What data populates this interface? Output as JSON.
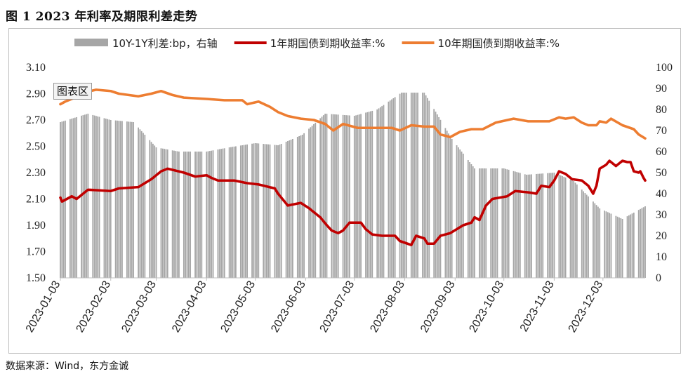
{
  "page": {
    "title": "图 1   2023 年利率及期限利差走势",
    "source": "数据来源：Wind，东方金诚",
    "chart_area_tag": "图表区"
  },
  "chart_data": {
    "type": "line",
    "title": "图 1   2023 年利率及期限利差走势",
    "left_axis": {
      "ylim": [
        1.5,
        3.1
      ],
      "ticks": [
        "1.50",
        "1.70",
        "1.90",
        "2.10",
        "2.30",
        "2.50",
        "2.70",
        "2.90",
        "3.10"
      ]
    },
    "right_axis": {
      "ylim": [
        0,
        100
      ],
      "ticks": [
        "0",
        "10",
        "20",
        "30",
        "40",
        "50",
        "60",
        "70",
        "80",
        "90",
        "100"
      ]
    },
    "x_ticks": [
      "2023-01-03",
      "2023-02-03",
      "2023-03-03",
      "2023-04-03",
      "2023-05-03",
      "2023-06-03",
      "2023-07-03",
      "2023-08-03",
      "2023-09-03",
      "2023-10-03",
      "2023-11-03",
      "2023-12-03"
    ],
    "x_range": [
      "2023-01-03",
      "2023-12-29"
    ],
    "legend_position": "top",
    "grid": false,
    "series": [
      {
        "name": "10Y-1Y利差:bp，右轴",
        "type": "bar",
        "axis": "right",
        "color": "#a6a6a6",
        "points": [
          [
            "2023-01-03",
            74
          ],
          [
            "2023-01-20",
            78
          ],
          [
            "2023-02-03",
            75
          ],
          [
            "2023-02-17",
            74
          ],
          [
            "2023-03-03",
            62
          ],
          [
            "2023-03-17",
            60
          ],
          [
            "2023-04-03",
            60
          ],
          [
            "2023-04-17",
            62
          ],
          [
            "2023-05-03",
            64
          ],
          [
            "2023-05-17",
            63
          ],
          [
            "2023-06-01",
            68
          ],
          [
            "2023-06-15",
            78
          ],
          [
            "2023-07-03",
            77
          ],
          [
            "2023-07-17",
            80
          ],
          [
            "2023-08-01",
            88
          ],
          [
            "2023-08-15",
            88
          ],
          [
            "2023-09-01",
            66
          ],
          [
            "2023-09-15",
            52
          ],
          [
            "2023-10-03",
            52
          ],
          [
            "2023-10-17",
            49
          ],
          [
            "2023-11-03",
            50
          ],
          [
            "2023-11-15",
            46
          ],
          [
            "2023-12-01",
            33
          ],
          [
            "2023-12-15",
            28
          ],
          [
            "2023-12-29",
            34
          ]
        ]
      },
      {
        "name": "1年期国债到期收益率:%",
        "type": "line",
        "axis": "left",
        "color": "#c00000",
        "points": [
          [
            "2023-01-03",
            2.11
          ],
          [
            "2023-01-04",
            2.08
          ],
          [
            "2023-01-10",
            2.12
          ],
          [
            "2023-01-13",
            2.1
          ],
          [
            "2023-01-20",
            2.17
          ],
          [
            "2023-02-03",
            2.16
          ],
          [
            "2023-02-08",
            2.18
          ],
          [
            "2023-02-20",
            2.19
          ],
          [
            "2023-02-28",
            2.25
          ],
          [
            "2023-03-06",
            2.31
          ],
          [
            "2023-03-10",
            2.33
          ],
          [
            "2023-03-20",
            2.3
          ],
          [
            "2023-03-27",
            2.27
          ],
          [
            "2023-04-03",
            2.28
          ],
          [
            "2023-04-06",
            2.26
          ],
          [
            "2023-04-10",
            2.24
          ],
          [
            "2023-04-20",
            2.24
          ],
          [
            "2023-04-28",
            2.22
          ],
          [
            "2023-05-05",
            2.21
          ],
          [
            "2023-05-15",
            2.18
          ],
          [
            "2023-05-17",
            2.14
          ],
          [
            "2023-05-23",
            2.05
          ],
          [
            "2023-05-31",
            2.07
          ],
          [
            "2023-06-05",
            2.03
          ],
          [
            "2023-06-12",
            1.96
          ],
          [
            "2023-06-16",
            1.9
          ],
          [
            "2023-06-19",
            1.86
          ],
          [
            "2023-06-23",
            1.84
          ],
          [
            "2023-06-26",
            1.86
          ],
          [
            "2023-06-28",
            1.89
          ],
          [
            "2023-06-30",
            1.92
          ],
          [
            "2023-07-03",
            1.92
          ],
          [
            "2023-07-07",
            1.92
          ],
          [
            "2023-07-10",
            1.87
          ],
          [
            "2023-07-14",
            1.83
          ],
          [
            "2023-07-20",
            1.82
          ],
          [
            "2023-07-28",
            1.82
          ],
          [
            "2023-07-31",
            1.78
          ],
          [
            "2023-08-07",
            1.75
          ],
          [
            "2023-08-10",
            1.82
          ],
          [
            "2023-08-15",
            1.8
          ],
          [
            "2023-08-17",
            1.76
          ],
          [
            "2023-08-21",
            1.76
          ],
          [
            "2023-08-25",
            1.82
          ],
          [
            "2023-08-31",
            1.84
          ],
          [
            "2023-09-08",
            1.9
          ],
          [
            "2023-09-13",
            1.92
          ],
          [
            "2023-09-15",
            1.96
          ],
          [
            "2023-09-18",
            1.94
          ],
          [
            "2023-09-22",
            2.05
          ],
          [
            "2023-09-26",
            2.1
          ],
          [
            "2023-10-05",
            2.12
          ],
          [
            "2023-10-10",
            2.16
          ],
          [
            "2023-10-18",
            2.15
          ],
          [
            "2023-10-23",
            2.14
          ],
          [
            "2023-10-26",
            2.2
          ],
          [
            "2023-10-31",
            2.19
          ],
          [
            "2023-11-03",
            2.24
          ],
          [
            "2023-11-06",
            2.31
          ],
          [
            "2023-11-10",
            2.29
          ],
          [
            "2023-11-14",
            2.25
          ],
          [
            "2023-11-20",
            2.24
          ],
          [
            "2023-11-24",
            2.2
          ],
          [
            "2023-11-27",
            2.14
          ],
          [
            "2023-11-29",
            2.2
          ],
          [
            "2023-12-01",
            2.33
          ],
          [
            "2023-12-05",
            2.36
          ],
          [
            "2023-12-07",
            2.39
          ],
          [
            "2023-12-11",
            2.35
          ],
          [
            "2023-12-15",
            2.39
          ],
          [
            "2023-12-18",
            2.38
          ],
          [
            "2023-12-20",
            2.38
          ],
          [
            "2023-12-22",
            2.31
          ],
          [
            "2023-12-25",
            2.3
          ],
          [
            "2023-12-26",
            2.31
          ],
          [
            "2023-12-28",
            2.26
          ],
          [
            "2023-12-29",
            2.24
          ]
        ]
      },
      {
        "name": "10年期国债到期收益率:%",
        "type": "line",
        "axis": "left",
        "color": "#ed7d31",
        "points": [
          [
            "2023-01-03",
            2.82
          ],
          [
            "2023-01-06",
            2.84
          ],
          [
            "2023-01-12",
            2.87
          ],
          [
            "2023-01-18",
            2.91
          ],
          [
            "2023-01-25",
            2.93
          ],
          [
            "2023-02-03",
            2.92
          ],
          [
            "2023-02-08",
            2.9
          ],
          [
            "2023-02-20",
            2.88
          ],
          [
            "2023-02-28",
            2.9
          ],
          [
            "2023-03-06",
            2.92
          ],
          [
            "2023-03-13",
            2.89
          ],
          [
            "2023-03-20",
            2.87
          ],
          [
            "2023-04-03",
            2.86
          ],
          [
            "2023-04-14",
            2.85
          ],
          [
            "2023-04-25",
            2.85
          ],
          [
            "2023-04-28",
            2.82
          ],
          [
            "2023-05-05",
            2.84
          ],
          [
            "2023-05-12",
            2.8
          ],
          [
            "2023-05-17",
            2.76
          ],
          [
            "2023-05-23",
            2.73
          ],
          [
            "2023-05-31",
            2.71
          ],
          [
            "2023-06-08",
            2.7
          ],
          [
            "2023-06-15",
            2.67
          ],
          [
            "2023-06-20",
            2.62
          ],
          [
            "2023-06-26",
            2.67
          ],
          [
            "2023-07-05",
            2.64
          ],
          [
            "2023-07-17",
            2.64
          ],
          [
            "2023-07-26",
            2.64
          ],
          [
            "2023-07-31",
            2.62
          ],
          [
            "2023-08-07",
            2.66
          ],
          [
            "2023-08-15",
            2.65
          ],
          [
            "2023-08-21",
            2.65
          ],
          [
            "2023-08-25",
            2.59
          ],
          [
            "2023-08-31",
            2.57
          ],
          [
            "2023-09-06",
            2.61
          ],
          [
            "2023-09-13",
            2.63
          ],
          [
            "2023-09-20",
            2.63
          ],
          [
            "2023-09-28",
            2.68
          ],
          [
            "2023-10-09",
            2.71
          ],
          [
            "2023-10-18",
            2.69
          ],
          [
            "2023-10-31",
            2.69
          ],
          [
            "2023-11-06",
            2.72
          ],
          [
            "2023-11-10",
            2.71
          ],
          [
            "2023-11-15",
            2.72
          ],
          [
            "2023-11-20",
            2.68
          ],
          [
            "2023-11-24",
            2.66
          ],
          [
            "2023-11-29",
            2.66
          ],
          [
            "2023-12-01",
            2.69
          ],
          [
            "2023-12-05",
            2.68
          ],
          [
            "2023-12-08",
            2.71
          ],
          [
            "2023-12-15",
            2.66
          ],
          [
            "2023-12-22",
            2.63
          ],
          [
            "2023-12-25",
            2.59
          ],
          [
            "2023-12-29",
            2.56
          ]
        ]
      }
    ]
  }
}
